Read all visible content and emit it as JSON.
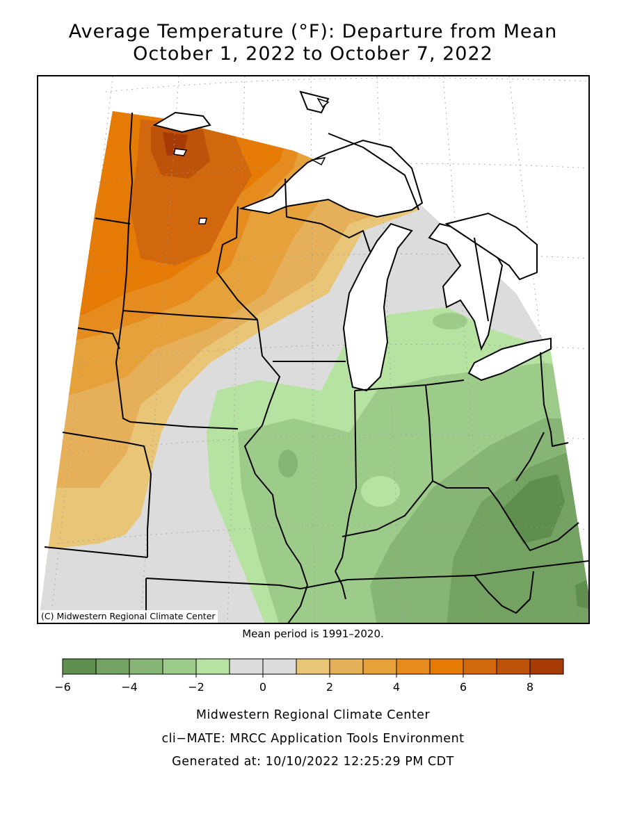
{
  "title_line1": "Average Temperature (°F): Departure from Mean",
  "title_line2": "October 1, 2022 to October 7, 2022",
  "map": {
    "copyright": "(C) Midwestern Regional Climate Center",
    "lake_color": "#ffffff",
    "boundary_color": "#000000"
  },
  "mean_note": "Mean period is 1991–2020.",
  "legend": {
    "bins": [
      {
        "from": -6,
        "to": -5,
        "color": "#5f8f4e"
      },
      {
        "from": -5,
        "to": -4,
        "color": "#74a262"
      },
      {
        "from": -4,
        "to": -3,
        "color": "#87b575"
      },
      {
        "from": -3,
        "to": -2,
        "color": "#9dcb89"
      },
      {
        "from": -2,
        "to": -1,
        "color": "#b6e3a1"
      },
      {
        "from": -1,
        "to": 0,
        "color": "#dcdcdc"
      },
      {
        "from": 0,
        "to": 1,
        "color": "#dcdcdc"
      },
      {
        "from": 1,
        "to": 2,
        "color": "#e8c577"
      },
      {
        "from": 2,
        "to": 3,
        "color": "#e6b05a"
      },
      {
        "from": 3,
        "to": 4,
        "color": "#e6a13a"
      },
      {
        "from": 4,
        "to": 5,
        "color": "#e68c1f"
      },
      {
        "from": 5,
        "to": 6,
        "color": "#e57a05"
      },
      {
        "from": 6,
        "to": 7,
        "color": "#d1680d"
      },
      {
        "from": 7,
        "to": 8,
        "color": "#bd520a"
      },
      {
        "from": 8,
        "to": 9,
        "color": "#a63b05"
      }
    ],
    "tick_labels": [
      "−6",
      "−4",
      "−2",
      "0",
      "2",
      "4",
      "6",
      "8"
    ],
    "tick_values": [
      -6,
      -4,
      -2,
      0,
      2,
      4,
      6,
      8
    ]
  },
  "footer": {
    "line1": "Midwestern Regional Climate Center",
    "line2": "cli−MATE: MRCC Application Tools Environment",
    "line3": "Generated at: 10/10/2022 12:25:29 PM CDT"
  }
}
